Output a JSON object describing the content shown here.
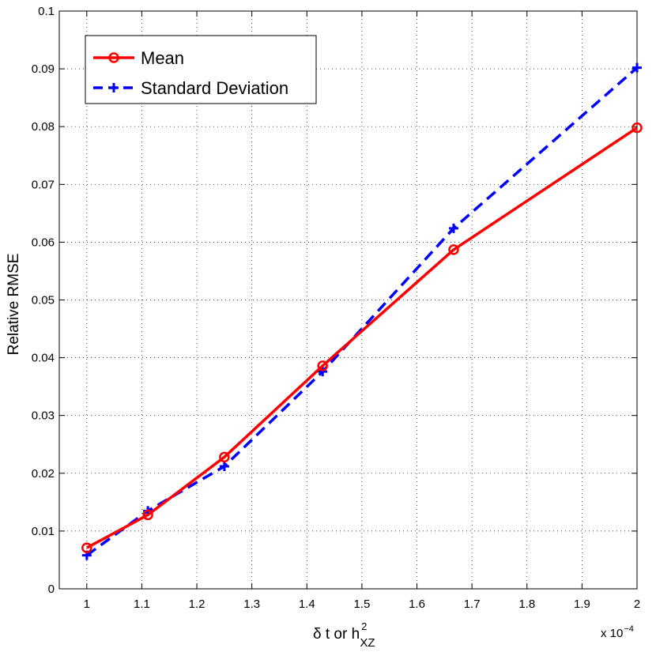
{
  "chart_data": {
    "type": "line",
    "xlabel": {
      "main": "δ t or h",
      "sup": "2",
      "sub": "XZ"
    },
    "ylabel": "Relative RMSE",
    "x_multiplier": {
      "base": "x 10",
      "exponent": "−4"
    },
    "xlim": [
      0.95,
      2.0
    ],
    "ylim": [
      0,
      0.1
    ],
    "x_ticks": [
      1,
      1.1,
      1.2,
      1.3,
      1.4,
      1.5,
      1.6,
      1.7,
      1.8,
      1.9,
      2
    ],
    "x_tick_labels": [
      "1",
      "1.1",
      "1.2",
      "1.3",
      "1.4",
      "1.5",
      "1.6",
      "1.7",
      "1.8",
      "1.9",
      "2"
    ],
    "y_ticks": [
      0,
      0.01,
      0.02,
      0.03,
      0.04,
      0.05,
      0.06,
      0.07,
      0.08,
      0.09,
      0.1
    ],
    "y_tick_labels": [
      "0",
      "0.01",
      "0.02",
      "0.03",
      "0.04",
      "0.05",
      "0.06",
      "0.07",
      "0.08",
      "0.09",
      "0.1"
    ],
    "grid": true,
    "legend_position": "top-left",
    "x": [
      1.0,
      1.111,
      1.25,
      1.4286,
      1.6667,
      2.0
    ],
    "series": [
      {
        "name": "Mean",
        "color": "#ff0000",
        "marker": "circle",
        "style": "solid",
        "values": [
          0.0071,
          0.0128,
          0.0228,
          0.0386,
          0.0587,
          0.0798
        ]
      },
      {
        "name": "Standard Deviation",
        "color": "#0000ff",
        "marker": "plus",
        "style": "dashed",
        "values": [
          0.0058,
          0.0135,
          0.0212,
          0.0376,
          0.0624,
          0.0902
        ]
      }
    ]
  }
}
